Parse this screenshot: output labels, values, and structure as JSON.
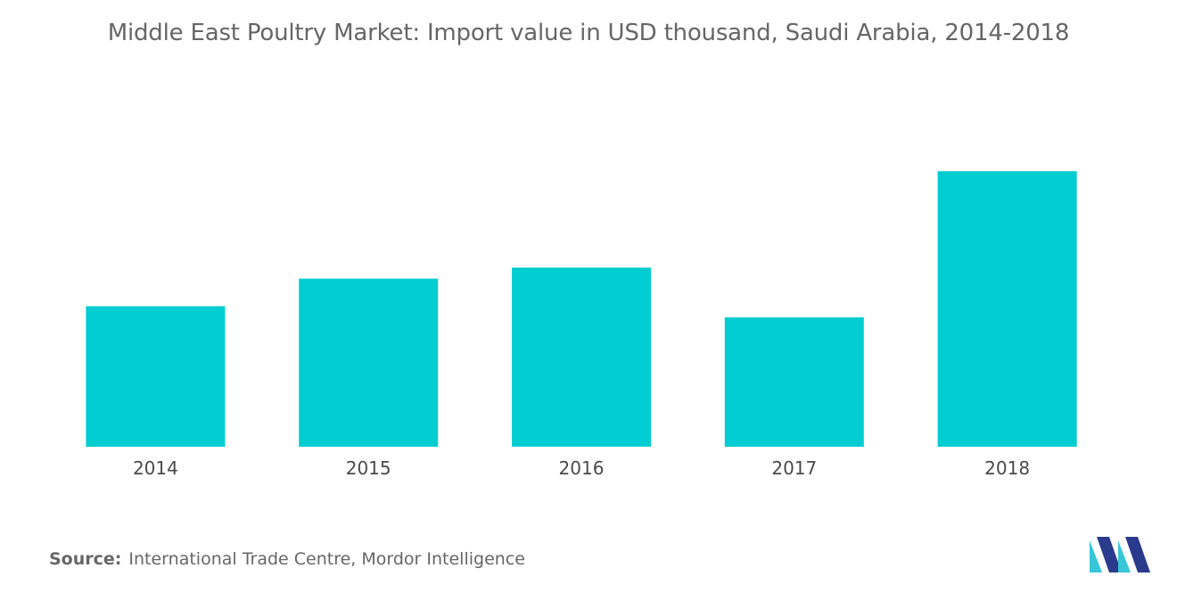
{
  "title": "Middle East Poultry Market: Import value in USD thousand, Saudi Arabia, 2014-2018",
  "source": {
    "label": "Source:",
    "text": "International Trade Centre, Mordor Intelligence"
  },
  "colors": {
    "bar": "#00CDD1",
    "text": "#666666",
    "logo_dark": "#2a3a8c",
    "logo_light": "#38c6d9"
  },
  "chart_data": {
    "type": "bar",
    "categories": [
      "2014",
      "2015",
      "2016",
      "2017",
      "2018"
    ],
    "values": [
      51,
      61,
      65,
      47,
      100
    ],
    "title": "Middle East Poultry Market: Import value in USD thousand, Saudi Arabia, 2014-2018",
    "xlabel": "",
    "ylabel": "",
    "ylim": [
      0,
      100
    ],
    "grid": false,
    "legend": "none",
    "value_axis_shown": false
  }
}
